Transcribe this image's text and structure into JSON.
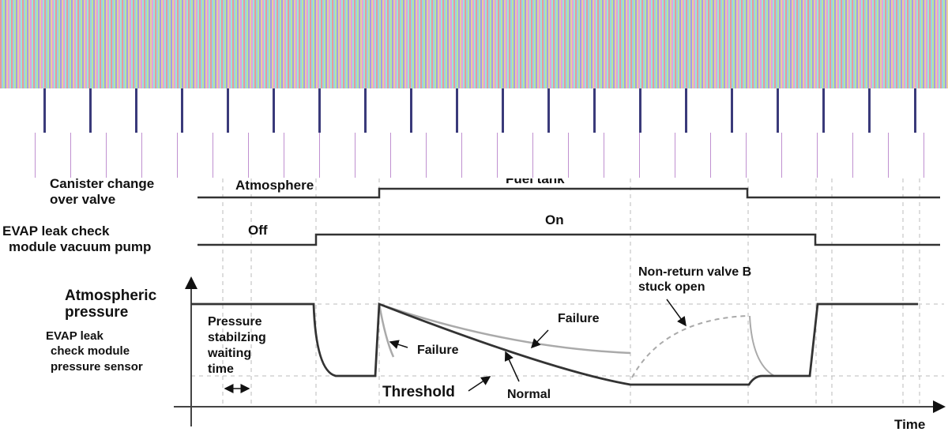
{
  "signals": {
    "canister_label_1": "Canister change",
    "canister_label_2": "over valve",
    "canister_low_state": "Atmosphere",
    "canister_high_state": "Fuel tank",
    "pump_label_1": "EVAP leak check",
    "pump_label_2": "module vacuum pump",
    "pump_off": "Off",
    "pump_on": "On"
  },
  "pressure": {
    "atm_label_1": "Atmospheric",
    "atm_label_2": "pressure",
    "sensor_label_1": "EVAP leak",
    "sensor_label_2": "check module",
    "sensor_label_3": "pressure sensor",
    "wait_1": "Pressure",
    "wait_2": "stabilzing",
    "wait_3": "waiting",
    "wait_4": "time",
    "failure_fast": "Failure",
    "failure_slow": "Failure",
    "threshold": "Threshold",
    "normal": "Normal",
    "stuck_1": "Non-return valve B",
    "stuck_2": "stuck open",
    "time_axis": "Time"
  },
  "colors": {
    "line": "#333333",
    "failure": "#aaaaaa",
    "grid": "#bbbbbb"
  }
}
